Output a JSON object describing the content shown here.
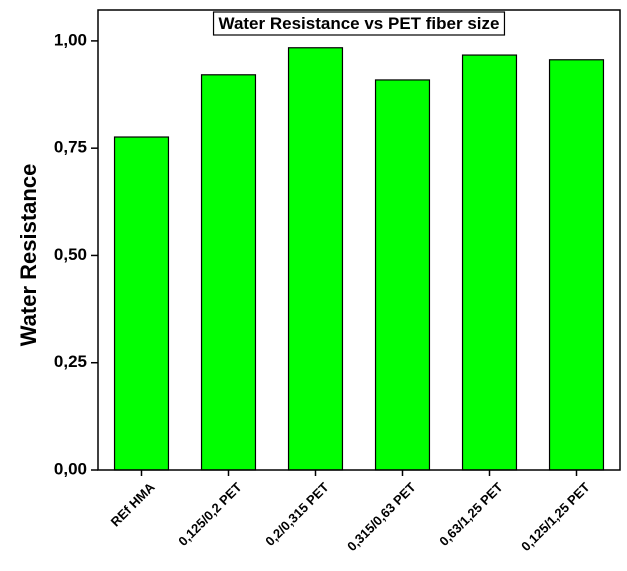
{
  "chart_data": {
    "type": "bar",
    "title": "Water Resistance vs PET fiber size",
    "y_label": "Water Resistance",
    "categories": [
      "REf HMA",
      "0,125/0,2 PET",
      "0,2/0,315 PET",
      "0,315/0,63 PET",
      "0,63/1,25 PET",
      "0,125/1,25 PET"
    ],
    "values": [
      0.776,
      0.921,
      0.984,
      0.909,
      0.967,
      0.956
    ],
    "color": "#00ff00",
    "ylim": [
      0,
      1.072
    ],
    "yticks": [
      {
        "value": 0,
        "label": "0,00"
      },
      {
        "value": 0.25,
        "label": "0,25"
      },
      {
        "value": 0.5,
        "label": "0,50"
      },
      {
        "value": 0.75,
        "label": "0,75"
      },
      {
        "value": 1,
        "label": "1,00"
      }
    ]
  }
}
